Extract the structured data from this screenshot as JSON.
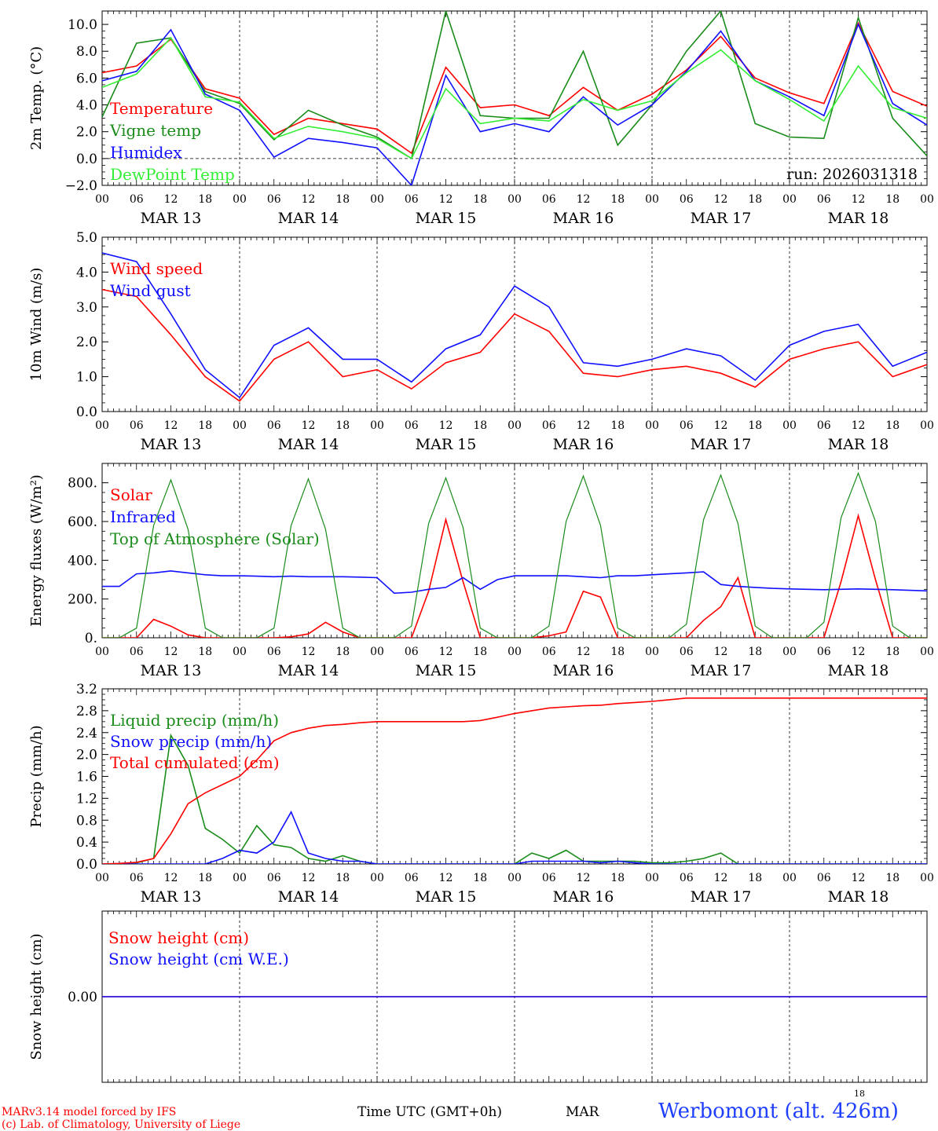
{
  "time_axis": {
    "hour_labels": [
      "00",
      "06",
      "12",
      "18",
      "00",
      "06",
      "12",
      "18",
      "00",
      "06",
      "12",
      "18",
      "00",
      "06",
      "12",
      "18",
      "00",
      "06",
      "12",
      "18",
      "00",
      "06",
      "12",
      "18",
      "00"
    ],
    "day_labels": [
      "MAR 13",
      "MAR 14",
      "MAR 15",
      "MAR 16",
      "MAR 17",
      "MAR 18"
    ],
    "title": "Time UTC (GMT+0h)",
    "month": "MAR",
    "day_small": "18"
  },
  "footer": {
    "credit_line1": "MARv3.14 model forced by IFS",
    "credit_line2": "(c) Lab. of Climatology, University of Liege",
    "station": "Werbomont (alt. 426m)"
  },
  "colors": {
    "red": "#ff0000",
    "green": "#1a8c1a",
    "blue": "#1010ff",
    "lightgreen": "#33ee33",
    "black": "#000000"
  },
  "chart_data": [
    {
      "type": "line",
      "title": "",
      "ylabel": "2m Temp. (°C)",
      "ylim": [
        -2,
        11
      ],
      "yticks": [
        -2,
        0,
        2,
        4,
        6,
        8,
        10
      ],
      "ytick_labels": [
        "−2.0",
        "0.0",
        "2.0",
        "4.0",
        "6.0",
        "8.0",
        "10.0"
      ],
      "zero_line": true,
      "annotation": "run: 2026031318",
      "x_hours": [
        0,
        6,
        12,
        18,
        24,
        30,
        36,
        42,
        48,
        54,
        60,
        66,
        72,
        78,
        84,
        90,
        96,
        102,
        108,
        114,
        120,
        126,
        132,
        138,
        144
      ],
      "series": [
        {
          "name": "Temperature",
          "color": "red",
          "values": [
            6.4,
            6.9,
            8.9,
            5.2,
            4.5,
            1.8,
            3.0,
            2.6,
            2.2,
            0.4,
            6.8,
            3.8,
            4.0,
            3.2,
            5.3,
            3.6,
            4.8,
            6.6,
            9.1,
            6.0,
            4.9,
            4.1,
            10.1,
            5.0,
            3.9
          ]
        },
        {
          "name": "Vigne temp",
          "color": "green",
          "values": [
            3.1,
            8.6,
            9.0,
            5.0,
            4.1,
            1.4,
            3.6,
            2.5,
            1.6,
            0.0,
            11.0,
            3.2,
            3.0,
            3.0,
            8.0,
            1.0,
            4.0,
            8.0,
            11.0,
            2.6,
            1.6,
            1.5,
            10.5,
            3.0,
            0.2
          ]
        },
        {
          "name": "Humidex",
          "color": "blue",
          "values": [
            5.8,
            6.5,
            9.6,
            4.8,
            3.6,
            0.1,
            1.5,
            1.2,
            0.8,
            -2.0,
            6.2,
            2.0,
            2.6,
            2.0,
            4.6,
            2.5,
            4.0,
            6.5,
            9.5,
            5.8,
            4.6,
            3.2,
            10.0,
            4.1,
            2.5
          ]
        },
        {
          "name": "DewPoint Temp",
          "color": "lightgreen",
          "values": [
            5.3,
            6.3,
            9.0,
            4.6,
            4.2,
            1.5,
            2.4,
            2.0,
            1.5,
            0.0,
            5.2,
            2.6,
            3.0,
            2.8,
            4.4,
            3.6,
            4.3,
            6.4,
            8.1,
            5.8,
            4.4,
            2.8,
            6.9,
            3.8,
            3.0
          ]
        }
      ]
    },
    {
      "type": "line",
      "title": "",
      "ylabel": "10m Wind (m/s)",
      "ylim": [
        0,
        5
      ],
      "yticks": [
        0,
        1,
        2,
        3,
        4,
        5
      ],
      "ytick_labels": [
        "0.0",
        "1.0",
        "2.0",
        "3.0",
        "4.0",
        "5.0"
      ],
      "x_hours": [
        0,
        6,
        12,
        18,
        24,
        30,
        36,
        42,
        48,
        54,
        60,
        66,
        72,
        78,
        84,
        90,
        96,
        102,
        108,
        114,
        120,
        126,
        132,
        138,
        144
      ],
      "series": [
        {
          "name": "Wind speed",
          "color": "red",
          "values": [
            3.5,
            3.3,
            2.2,
            1.0,
            0.3,
            1.5,
            2.0,
            1.0,
            1.2,
            0.65,
            1.4,
            1.7,
            2.8,
            2.3,
            1.1,
            1.0,
            1.2,
            1.3,
            1.1,
            0.7,
            1.5,
            1.8,
            2.0,
            1.0,
            1.35
          ]
        },
        {
          "name": "Wind gust",
          "color": "blue",
          "values": [
            4.55,
            4.3,
            2.8,
            1.2,
            0.4,
            1.9,
            2.4,
            1.5,
            1.5,
            0.85,
            1.8,
            2.2,
            3.6,
            3.0,
            1.4,
            1.3,
            1.5,
            1.8,
            1.6,
            0.9,
            1.9,
            2.3,
            2.5,
            1.3,
            1.7
          ]
        }
      ]
    },
    {
      "type": "line",
      "title": "",
      "ylabel": "Energy fluxes (W/m²)",
      "ylim": [
        0,
        900
      ],
      "yticks": [
        0,
        200,
        400,
        600,
        800
      ],
      "ytick_labels": [
        "0.",
        "200.",
        "400.",
        "600.",
        "800."
      ],
      "x_hours": [
        0,
        3,
        6,
        9,
        12,
        15,
        18,
        21,
        24,
        27,
        30,
        33,
        36,
        39,
        42,
        45,
        48,
        51,
        54,
        57,
        60,
        63,
        66,
        69,
        72,
        75,
        78,
        81,
        84,
        87,
        90,
        93,
        96,
        99,
        102,
        105,
        108,
        111,
        114,
        117,
        120,
        123,
        126,
        129,
        132,
        135,
        138,
        141,
        144
      ],
      "series": [
        {
          "name": "Solar",
          "color": "red",
          "values": [
            0,
            0,
            0,
            95,
            60,
            15,
            0,
            0,
            0,
            0,
            0,
            5,
            20,
            80,
            30,
            0,
            0,
            0,
            0,
            240,
            610,
            290,
            0,
            0,
            0,
            0,
            10,
            30,
            240,
            210,
            0,
            0,
            0,
            0,
            0,
            90,
            160,
            310,
            0,
            0,
            0,
            0,
            0,
            290,
            630,
            300,
            0,
            0,
            0
          ]
        },
        {
          "name": "Infrared",
          "color": "blue",
          "values": [
            265,
            265,
            330,
            335,
            345,
            335,
            325,
            320,
            320,
            318,
            315,
            318,
            315,
            315,
            315,
            313,
            310,
            230,
            235,
            250,
            260,
            310,
            250,
            300,
            320,
            320,
            320,
            320,
            315,
            310,
            320,
            320,
            325,
            330,
            335,
            340,
            275,
            265,
            260,
            255,
            252,
            250,
            248,
            250,
            252,
            250,
            248,
            245,
            242
          ]
        },
        {
          "name": "Top of Atmosphere (Solar)",
          "color": "green",
          "values": [
            0,
            0,
            50,
            580,
            815,
            560,
            50,
            0,
            0,
            0,
            50,
            580,
            820,
            560,
            50,
            0,
            0,
            0,
            60,
            590,
            825,
            570,
            50,
            0,
            0,
            0,
            60,
            600,
            835,
            580,
            50,
            0,
            0,
            0,
            70,
            610,
            840,
            590,
            60,
            0,
            0,
            0,
            80,
            620,
            850,
            600,
            60,
            0,
            0
          ]
        }
      ]
    },
    {
      "type": "line",
      "title": "",
      "ylabel": "Precip (mm/h)",
      "ylim": [
        0,
        3.2
      ],
      "yticks": [
        0,
        0.4,
        0.8,
        1.2,
        1.6,
        2.0,
        2.4,
        2.8,
        3.2
      ],
      "ytick_labels": [
        "0.0",
        "0.4",
        "0.8",
        "1.2",
        "1.6",
        "2.0",
        "2.4",
        "2.8",
        "3.2"
      ],
      "x_hours": [
        0,
        3,
        6,
        9,
        12,
        15,
        18,
        21,
        24,
        27,
        30,
        33,
        36,
        39,
        42,
        45,
        48,
        51,
        54,
        57,
        60,
        63,
        66,
        69,
        72,
        75,
        78,
        81,
        84,
        87,
        90,
        93,
        96,
        99,
        102,
        105,
        108,
        111,
        114,
        117,
        120,
        123,
        126,
        129,
        132,
        135,
        138,
        141,
        144
      ],
      "series": [
        {
          "name": "Liquid precip (mm/h)",
          "color": "green",
          "values": [
            0,
            0,
            0.02,
            0.1,
            2.35,
            1.8,
            0.65,
            0.45,
            0.2,
            0.7,
            0.35,
            0.3,
            0.1,
            0.05,
            0.15,
            0.05,
            0,
            0,
            0,
            0,
            0,
            0,
            0,
            0,
            0,
            0.2,
            0.1,
            0.25,
            0.05,
            0.05,
            0.05,
            0.05,
            0.02,
            0.02,
            0.05,
            0.1,
            0.2,
            0,
            0,
            0,
            0,
            0,
            0,
            0,
            0,
            0,
            0,
            0,
            0
          ]
        },
        {
          "name": "Snow precip (mm/h)",
          "color": "blue",
          "values": [
            0,
            0,
            0,
            0,
            0,
            0,
            0,
            0.1,
            0.25,
            0.2,
            0.4,
            0.95,
            0.2,
            0.1,
            0.05,
            0.05,
            0,
            0,
            0,
            0,
            0,
            0,
            0,
            0,
            0,
            0.05,
            0.05,
            0.05,
            0.05,
            0.02,
            0.05,
            0.02,
            0,
            0,
            0,
            0,
            0,
            0,
            0,
            0,
            0,
            0,
            0,
            0,
            0,
            0,
            0,
            0,
            0
          ]
        },
        {
          "name": "Total cumulated (cm)",
          "color": "red",
          "values": [
            0,
            0.01,
            0.03,
            0.1,
            0.55,
            1.1,
            1.3,
            1.45,
            1.6,
            1.9,
            2.25,
            2.4,
            2.48,
            2.53,
            2.55,
            2.58,
            2.6,
            2.6,
            2.6,
            2.6,
            2.6,
            2.6,
            2.62,
            2.68,
            2.75,
            2.8,
            2.85,
            2.87,
            2.89,
            2.9,
            2.93,
            2.95,
            2.97,
            3.0,
            3.03,
            3.03,
            3.03,
            3.03,
            3.03,
            3.03,
            3.03,
            3.03,
            3.03,
            3.03,
            3.03,
            3.03,
            3.03,
            3.03,
            3.03
          ]
        }
      ]
    },
    {
      "type": "line",
      "title": "",
      "ylabel": "Snow height (cm)",
      "ylim": [
        -1,
        1
      ],
      "yticks": [
        0
      ],
      "ytick_labels": [
        "0.00"
      ],
      "x_hours": [
        0,
        144
      ],
      "series": [
        {
          "name": "Snow height (cm)",
          "color": "red",
          "values": [
            0,
            0
          ]
        },
        {
          "name": "Snow height (cm W.E.)",
          "color": "blue",
          "values": [
            0,
            0
          ]
        }
      ]
    }
  ]
}
